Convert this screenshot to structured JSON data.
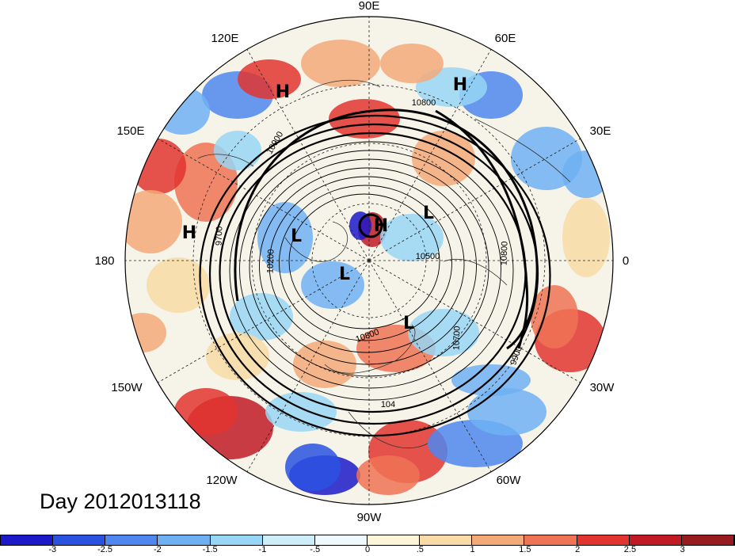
{
  "title": "Day 2012013118",
  "longitude_labels": [
    "90E",
    "60E",
    "30E",
    "0",
    "30W",
    "60W",
    "90W",
    "120W",
    "150W",
    "180",
    "150E",
    "120E"
  ],
  "pressure_systems": [
    "H",
    "H",
    "H",
    "H",
    "L",
    "L",
    "L",
    "L"
  ],
  "contour_labels": [
    "10800",
    "10900",
    "9700",
    "10200",
    "10500",
    "10700",
    "9900",
    "10800",
    "104",
    "10800"
  ],
  "colorbar": {
    "ticks": [
      "-3",
      "-2.5",
      "-2",
      "-1.5",
      "-1",
      "-.5",
      "0",
      ".5",
      "1",
      "1.5",
      "2",
      "2.5",
      "3"
    ],
    "colors": [
      "#1c19c9",
      "#2a52e0",
      "#4f86ef",
      "#6fb0f3",
      "#98d6f5",
      "#cdeef9",
      "#eef9fc",
      "#fdf5d9",
      "#f8dba6",
      "#f4a979",
      "#ef7355",
      "#e2342f",
      "#c11a24",
      "#971b1f"
    ]
  }
}
